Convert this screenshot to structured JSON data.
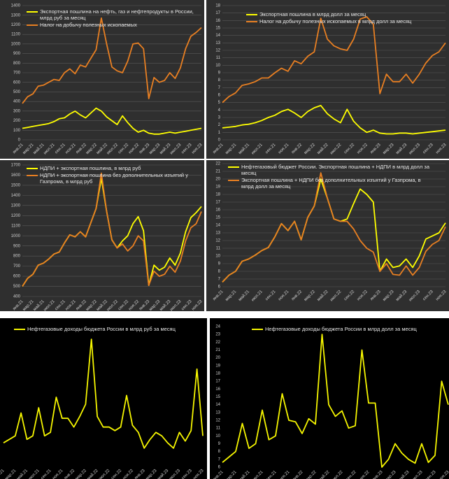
{
  "chart_data": [
    {
      "type": "line",
      "ylim": [
        0,
        1400
      ],
      "yticks": [
        0,
        100,
        200,
        300,
        400,
        500,
        600,
        700,
        800,
        900,
        1000,
        1100,
        1200,
        1300,
        1400
      ],
      "grid": true,
      "categories": [
        "янв.21",
        null,
        "мар.21",
        null,
        "май.21",
        null,
        "июл.21",
        null,
        "сен.21",
        null,
        "ноя.21",
        null,
        "янв.22",
        null,
        "мар.22",
        null,
        "май.22",
        null,
        "июл.22",
        null,
        "сен.22",
        null,
        "ноя.22",
        null,
        "янв.23",
        null,
        "мар.23",
        null,
        "май.23",
        null,
        "июл.23",
        null,
        "сен.23",
        null,
        "ноя.23"
      ],
      "series": [
        {
          "name": "Экспортная пошлина на нефть, газ и нефтепродукты в России, млрд руб за месяц",
          "color": "#ffff00",
          "values": [
            120,
            130,
            140,
            150,
            160,
            170,
            190,
            220,
            230,
            270,
            300,
            260,
            230,
            280,
            330,
            300,
            240,
            200,
            160,
            250,
            180,
            120,
            80,
            100,
            70,
            60,
            60,
            70,
            80,
            70,
            80,
            90,
            100,
            110,
            120
          ]
        },
        {
          "name": "Налог на добычу полезных ископаемых",
          "color": "#e87f22",
          "values": [
            380,
            450,
            480,
            560,
            570,
            600,
            630,
            620,
            700,
            740,
            690,
            780,
            760,
            850,
            940,
            1270,
            1000,
            760,
            720,
            700,
            820,
            1000,
            1010,
            950,
            430,
            650,
            600,
            620,
            700,
            640,
            750,
            950,
            1080,
            1120,
            1170
          ]
        }
      ]
    },
    {
      "type": "line",
      "ylim": [
        0,
        18
      ],
      "yticks": [
        0,
        1,
        2,
        3,
        4,
        5,
        6,
        7,
        8,
        9,
        10,
        11,
        12,
        13,
        14,
        15,
        16,
        17,
        18
      ],
      "grid": true,
      "categories": [
        "янв.21",
        null,
        "мар.21",
        null,
        "май.21",
        null,
        "июл.21",
        null,
        "сен.21",
        null,
        "ноя.21",
        null,
        "янв.22",
        null,
        "мар.22",
        null,
        "май.22",
        null,
        "июл.22",
        null,
        "сен.22",
        null,
        "ноя.22",
        null,
        "янв.23",
        null,
        "мар.23",
        null,
        "май.23",
        null,
        "июл.23",
        null,
        "сен.23",
        null,
        "ноя.23"
      ],
      "series": [
        {
          "name": "Экспортная пошлина в млрд долл за месяц",
          "color": "#ffff00",
          "values": [
            1.6,
            1.7,
            1.8,
            2,
            2.1,
            2.3,
            2.6,
            3,
            3.3,
            3.8,
            4.1,
            3.6,
            3,
            3.8,
            4.3,
            4.6,
            3.5,
            2.8,
            2.3,
            4.1,
            2.5,
            1.6,
            1,
            1.3,
            0.9,
            0.8,
            0.8,
            0.9,
            0.9,
            0.8,
            0.9,
            1,
            1.1,
            1.2,
            1.3
          ]
        },
        {
          "name": "Налог на добычу полезных ископаемых в млрд долл за месяц",
          "color": "#e87f22",
          "values": [
            5,
            5.8,
            6.3,
            7.3,
            7.5,
            7.8,
            8.3,
            8.3,
            9,
            9.6,
            9.2,
            10.6,
            10.2,
            11.2,
            11.8,
            16.3,
            13.5,
            12.6,
            12.2,
            12,
            13.5,
            16.2,
            16.5,
            15.5,
            6.2,
            8.8,
            7.8,
            7.8,
            8.8,
            7.6,
            8.8,
            10.3,
            11.3,
            11.8,
            13
          ]
        }
      ]
    },
    {
      "type": "line",
      "ylim": [
        400,
        1700
      ],
      "yticks": [
        400,
        500,
        600,
        700,
        800,
        900,
        1000,
        1100,
        1200,
        1300,
        1400,
        1500,
        1600,
        1700
      ],
      "grid": true,
      "categories": [
        "янв.21",
        null,
        "мар.21",
        null,
        "май.21",
        null,
        "июл.21",
        null,
        "сен.21",
        null,
        "ноя.21",
        null,
        "янв.22",
        null,
        "мар.22",
        null,
        "май.22",
        null,
        "июл.22",
        null,
        "сен.22",
        null,
        "ноя.22",
        null,
        "янв.23",
        null,
        "мар.23",
        null,
        "май.23",
        null,
        "июл.23",
        null,
        "сен.23",
        null,
        "ноя.23"
      ],
      "series": [
        {
          "name": "НДПИ + экспортная пошлина, в млрд руб",
          "color": "#ffff00",
          "values": [
            500,
            580,
            620,
            710,
            730,
            770,
            820,
            840,
            930,
            1010,
            990,
            1040,
            990,
            1130,
            1270,
            1570,
            1240,
            960,
            880,
            950,
            1000,
            1120,
            1190,
            1050,
            510,
            710,
            660,
            690,
            780,
            710,
            830,
            1040,
            1180,
            1230,
            1290
          ]
        },
        {
          "name": "НДПИ + экспортная пошлина без дополнительных изъятий у Газпрома, в млрд руб",
          "color": "#e87f22",
          "values": [
            500,
            580,
            620,
            710,
            730,
            770,
            820,
            840,
            930,
            1010,
            990,
            1040,
            990,
            1130,
            1270,
            1620,
            1240,
            960,
            880,
            920,
            850,
            900,
            1000,
            950,
            510,
            650,
            600,
            620,
            700,
            640,
            750,
            950,
            1080,
            1120,
            1240
          ]
        }
      ]
    },
    {
      "type": "line",
      "ylim": [
        6,
        22
      ],
      "yticks": [
        6,
        7,
        8,
        9,
        10,
        11,
        12,
        13,
        14,
        15,
        16,
        17,
        18,
        19,
        20,
        21,
        22
      ],
      "grid": true,
      "categories": [
        "янв.21",
        null,
        "мар.21",
        null,
        "май.21",
        null,
        "июл.21",
        null,
        "сен.21",
        null,
        "ноя.21",
        null,
        "янв.22",
        null,
        "мар.22",
        null,
        "май.22",
        null,
        "июл.22",
        null,
        "сен.22",
        null,
        "ноя.22",
        null,
        "янв.23",
        null,
        "мар.23",
        null,
        "май.23",
        null,
        "июл.23",
        null,
        "сен.23",
        null,
        "ноя.23"
      ],
      "series": [
        {
          "name": "Нефтегазовый бюджет России. Экспортная пошлина + НДПИ в млрд долл за месяц",
          "color": "#ffff00",
          "values": [
            6.6,
            7.5,
            8,
            9.3,
            9.6,
            10.1,
            10.7,
            11.1,
            12.5,
            14.2,
            13.3,
            14.5,
            12.1,
            15,
            16.5,
            20,
            17.5,
            14.8,
            14.5,
            14.8,
            16.8,
            18.7,
            18,
            17,
            8,
            9.6,
            8.5,
            8.7,
            9.6,
            8.5,
            10,
            12.2,
            12.6,
            13,
            14.3
          ]
        },
        {
          "name": "Экспортная пошлина + НДПИ без дополнительных изъятий у Газпрома, в млрд долл за месяц",
          "color": "#e87f22",
          "values": [
            6.6,
            7.5,
            8,
            9.3,
            9.6,
            10.1,
            10.7,
            11.1,
            12.5,
            14.2,
            13.3,
            14.5,
            12.1,
            15,
            16.5,
            20.8,
            17.5,
            14.8,
            14.5,
            14.5,
            13.5,
            12,
            11,
            10.5,
            8,
            9,
            7.6,
            7.5,
            8.7,
            7.5,
            8.5,
            10.6,
            11.5,
            12,
            13.8
          ]
        }
      ]
    },
    {
      "type": "line",
      "ylim": [
        550,
        1350
      ],
      "grid": false,
      "categories": [
        "янв.21",
        null,
        "мар.21",
        null,
        "май.21",
        null,
        "июл.21",
        null,
        "сен.21",
        null,
        "ноя.21",
        null,
        "янв.22",
        null,
        "мар.22",
        null,
        "май.22",
        null,
        "июл.22",
        null,
        "сен.22",
        null,
        "ноя.22",
        null,
        "янв.23",
        null,
        "мар.23",
        null,
        "май.23",
        null,
        "июл.23",
        null,
        "сен.23",
        null,
        "ноя.23"
      ],
      "series": [
        {
          "name": "Нефтегазовые доходы бюджета России в млрд руб за месяц",
          "color": "#f5f500",
          "values": [
            680,
            700,
            720,
            850,
            700,
            720,
            880,
            720,
            740,
            940,
            820,
            820,
            770,
            830,
            900,
            1270,
            830,
            770,
            770,
            750,
            770,
            950,
            780,
            740,
            650,
            700,
            740,
            720,
            680,
            650,
            740,
            690,
            750,
            1100,
            720
          ]
        }
      ]
    },
    {
      "type": "line",
      "ylim": [
        6,
        24
      ],
      "yticks": [
        6,
        7,
        8,
        9,
        10,
        11,
        12,
        13,
        14,
        15,
        16,
        17,
        18,
        19,
        20,
        21,
        22,
        23,
        24
      ],
      "grid": false,
      "categories": [
        "янв.21",
        null,
        "мар.21",
        null,
        "май.21",
        null,
        "июл.21",
        null,
        "сен.21",
        null,
        "ноя.21",
        null,
        "янв.22",
        null,
        "мар.22",
        null,
        "май.22",
        null,
        "июл.22",
        null,
        "сен.22",
        null,
        "ноя.22",
        null,
        "янв.23",
        null,
        "мар.23",
        null,
        "май.23",
        null,
        "июл.23",
        null,
        "сен.23",
        null,
        "ноя.23"
      ],
      "series": [
        {
          "name": "Нефтегазовые доходы бюджета России в млрд долл за месяц",
          "color": "#f5f500",
          "values": [
            6.6,
            7.3,
            8,
            11.6,
            8.4,
            9,
            13.3,
            9.5,
            10,
            15.4,
            12,
            11.8,
            10.3,
            12.2,
            11.5,
            23,
            14,
            12.5,
            13.2,
            11,
            11.3,
            21,
            14.2,
            14.2,
            6,
            7,
            9,
            7.8,
            7,
            6.5,
            9,
            6.6,
            7.5,
            17,
            14
          ]
        }
      ]
    }
  ]
}
